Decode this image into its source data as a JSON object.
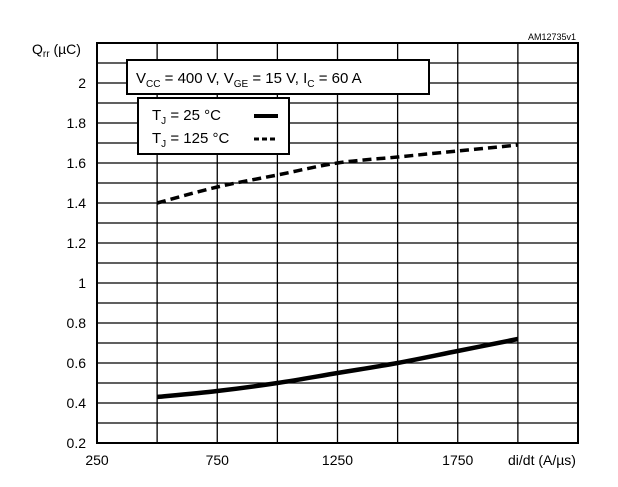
{
  "chart_data": {
    "type": "line",
    "reference_code": "AM12735v1",
    "conditions": {
      "vcc": {
        "sym": "V",
        "sub": "CC",
        "val": " = 400 V, "
      },
      "vge": {
        "sym": "V",
        "sub": "GE",
        "val": " = 15 V, "
      },
      "ic": {
        "sym": "I",
        "sub": "C",
        "val": " = 60 A"
      }
    },
    "ylabel": {
      "sym": "Q",
      "sub": "rr",
      "unit": " (µC)"
    },
    "xlabel": "di/dt (A/µs)",
    "xlim": [
      250,
      2250
    ],
    "ylim": [
      0.2,
      2.2
    ],
    "x_ticks": [
      250,
      750,
      1250,
      1750
    ],
    "x_tick_labels": [
      "250",
      "750",
      "1250",
      "1750"
    ],
    "y_ticks": [
      0.2,
      0.4,
      0.6,
      0.8,
      1.0,
      1.2,
      1.4,
      1.6,
      1.8,
      2.0
    ],
    "y_tick_labels": [
      "0.2",
      "0.4",
      "0.6",
      "0.8",
      "1",
      "1.2",
      "1.4",
      "1.6",
      "1.8",
      "2"
    ],
    "grid": true,
    "legend_position": "top-left",
    "series": [
      {
        "legend_sym": "T",
        "legend_sub": "J",
        "legend_val": " = 25 °C",
        "style": "solid",
        "x": [
          500,
          750,
          1000,
          1250,
          1500,
          1750,
          2000
        ],
        "y": [
          0.43,
          0.46,
          0.5,
          0.55,
          0.6,
          0.66,
          0.72
        ]
      },
      {
        "legend_sym": "T",
        "legend_sub": "J",
        "legend_val": " = 125 °C",
        "style": "dashed",
        "x": [
          500,
          750,
          1000,
          1250,
          1500,
          1750,
          2000
        ],
        "y": [
          1.4,
          1.48,
          1.54,
          1.6,
          1.63,
          1.66,
          1.69
        ]
      }
    ]
  }
}
